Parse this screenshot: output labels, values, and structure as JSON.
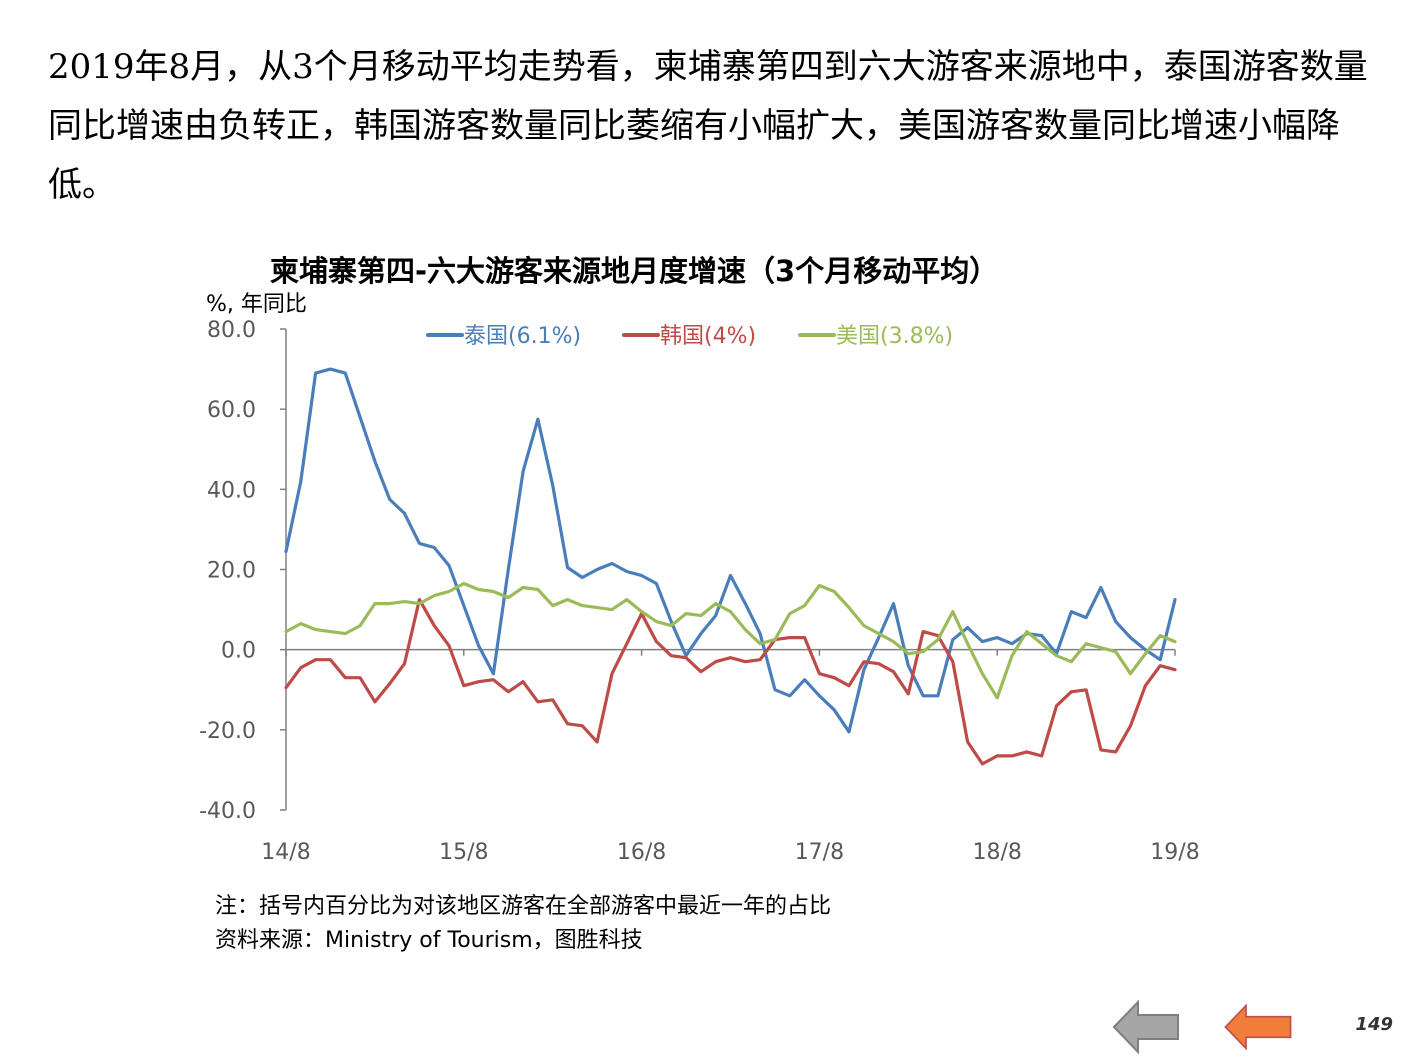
{
  "intro_text": "2019年8月，从3个月移动平均走势看，柬埔寨第四到六大游客来源地中，泰国游客数量同比增速由负转正，韩国游客数量同比萎缩有小幅扩大，美国游客数量同比增速小幅降低。",
  "notes": {
    "note": "注：括号内百分比为对该地区游客在全部游客中最近一年的占比",
    "source": "资料来源：Ministry of Tourism，图胜科技"
  },
  "page_number": "149",
  "nav": {
    "prev_icon": "arrow-left-icon",
    "next_icon": "arrow-left-icon",
    "prev_color": "#a6a6a6",
    "next_color": "#f07d3a"
  },
  "chart_data": {
    "type": "line",
    "title": "柬埔寨第四-六大游客来源地月度增速（3个月移动平均）",
    "ylabel": "%, 年同比",
    "xlabel": "",
    "ylim": [
      -40,
      80
    ],
    "yticks": [
      "80.0",
      "60.0",
      "40.0",
      "20.0",
      "0.0",
      "-20.0",
      "-40.0"
    ],
    "x_tick_labels": [
      "14/8",
      "15/8",
      "16/8",
      "17/8",
      "18/8",
      "19/8"
    ],
    "x_tick_indices": [
      0,
      12,
      24,
      36,
      48,
      60
    ],
    "legend_position": "top",
    "grid": false,
    "series": [
      {
        "name": "泰国(6.1%)",
        "color": "#4a7ebb",
        "values": [
          24.5,
          42,
          69,
          70,
          69,
          58,
          47,
          37.5,
          34,
          26.5,
          25.5,
          21,
          11,
          1,
          -6,
          20,
          44.5,
          57.5,
          41,
          20.5,
          18,
          20,
          21.5,
          19.5,
          18.5,
          16.5,
          7,
          -1.5,
          4,
          8.5,
          18.5,
          11.5,
          4,
          -10,
          -11.5,
          -7.5,
          -11.5,
          -15,
          -20.5,
          -5,
          3,
          11.5,
          -4,
          -11.5,
          -11.5,
          2.5,
          5.5,
          2,
          3,
          1.5,
          4,
          3.5,
          -1,
          9.5,
          8,
          15.5,
          7,
          3,
          0,
          -2.5,
          12.5
        ]
      },
      {
        "name": "韩国(4%)",
        "color": "#be4b48",
        "values": [
          -9.5,
          -4.5,
          -2.5,
          -2.5,
          -7,
          -7,
          -13,
          -8.5,
          -3.5,
          12.5,
          6,
          1,
          -9,
          -8,
          -7.5,
          -10.5,
          -8,
          -13,
          -12.5,
          -18.5,
          -19,
          -23,
          -6,
          1.5,
          9,
          2,
          -1.5,
          -2,
          -5.5,
          -3,
          -2,
          -3,
          -2.5,
          2.5,
          3,
          3,
          -6,
          -7,
          -9,
          -3,
          -3.5,
          -5.5,
          -11,
          4.5,
          3.5,
          -3,
          -23,
          -28.5,
          -26.5,
          -26.5,
          -25.5,
          -26.5,
          -14,
          -10.5,
          -10,
          -25,
          -25.5,
          -19,
          -9,
          -4,
          -5
        ]
      },
      {
        "name": "美国(3.8%)",
        "color": "#9bbb59",
        "values": [
          4.5,
          6.5,
          5,
          4.5,
          4,
          6,
          11.5,
          11.5,
          12,
          11.5,
          13.5,
          14.5,
          16.5,
          15,
          14.5,
          13,
          15.5,
          15,
          11,
          12.5,
          11,
          10.5,
          10,
          12.5,
          9.5,
          7,
          6,
          9,
          8.5,
          11.5,
          9.5,
          5,
          1.5,
          2.5,
          9,
          11,
          16,
          14.5,
          10.5,
          6,
          4,
          2,
          -1,
          -0.5,
          2.5,
          9.5,
          1.5,
          -6,
          -12,
          -1.5,
          4.5,
          1.5,
          -1.5,
          -3,
          1.5,
          0.5,
          -0.5,
          -6,
          -1,
          3.5,
          2
        ]
      }
    ]
  }
}
